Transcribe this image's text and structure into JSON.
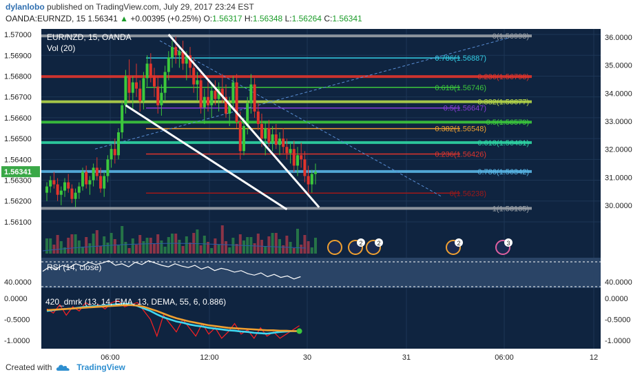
{
  "header": {
    "user": "dylanlobo",
    "published": "published on TradingView.com, July 29, 2017 23:24 EST",
    "symbol_line": "OANDA:EURNZD, 15",
    "last": "1.56341",
    "change_arrow": "▲",
    "change": "+0.00395 (+0.25%)",
    "o_label": "O:",
    "o_val": "1.56317",
    "h_label": "H:",
    "h_val": "1.56348",
    "l_label": "L:",
    "l_val": "1.56264",
    "c_label": "C:",
    "c_val": "1.56341"
  },
  "legend": {
    "title": "EUR/NZD, 15, OANDA",
    "vol": "Vol (20)"
  },
  "footer": {
    "created": "Created with",
    "brand": "TradingView",
    "logo_icon": "tradingview-cloud-icon"
  },
  "colors": {
    "background": "#0f2440",
    "grid": "#1d3656",
    "bull": "#3cc83c",
    "bear": "#e0342c",
    "price_badge": "#3aa847"
  },
  "chart_data": [
    {
      "type": "candlestick",
      "name": "main-price",
      "yaxis_left": {
        "ticks": [
          "1.57000",
          "1.56900",
          "1.56800",
          "1.56700",
          "1.56600",
          "1.56500",
          "1.56400",
          "1.56300",
          "1.56200",
          "1.56100"
        ],
        "range": [
          1.5608,
          1.5702
        ],
        "last_price_label": "1.56341"
      },
      "yaxis_right": {
        "ticks": [
          "36.0000",
          "35.0000",
          "34.0000",
          "33.0000",
          "32.0000",
          "31.0000",
          "30.0000"
        ]
      },
      "xaxis": {
        "ticks": [
          "06:00",
          "12:00",
          "30",
          "31",
          "06:00",
          "12"
        ]
      },
      "fib_levels_1": [
        {
          "label": "0(1.56993)",
          "value": 1.56993,
          "color": "#9aa0a6"
        },
        {
          "label": "0.236(1.56798)",
          "value": 1.56798,
          "color": "#e0342c"
        },
        {
          "label": "0.382(1.56677)",
          "value": 1.56677,
          "color": "#b6d84a"
        },
        {
          "label": "0.5(1.56579)",
          "value": 1.56579,
          "color": "#3cc83c"
        },
        {
          "label": "0.618(1.56481)",
          "value": 1.56481,
          "color": "#2fd6a4"
        },
        {
          "label": "0.786(1.56342)",
          "value": 1.56342,
          "color": "#59b6e6"
        },
        {
          "label": "1(1.56165)",
          "value": 1.56165,
          "color": "#9aa0a6"
        }
      ],
      "fib_levels_2": [
        {
          "label": "0.786(1.56887)",
          "value": 1.56887,
          "color": "#33cfe6"
        },
        {
          "label": "0.618(1.56746)",
          "value": 1.56746,
          "color": "#3cc83c"
        },
        {
          "label": "0.5(1.56647)",
          "value": 1.56647,
          "color": "#8a3cd8"
        },
        {
          "label": "0.382(1.56548)",
          "value": 1.56548,
          "color": "#f0a030"
        },
        {
          "label": "0.236(1.56426)",
          "value": 1.56426,
          "color": "#e0342c"
        },
        {
          "label": "0(1.56238)",
          "value": 1.56238,
          "color": "#a01818"
        }
      ],
      "event_badges": [
        "2",
        "2",
        "2",
        "3"
      ],
      "candles": [
        [
          1.5624,
          1.5629,
          1.562,
          1.5627
        ],
        [
          1.5627,
          1.5632,
          1.5624,
          1.563
        ],
        [
          1.563,
          1.5634,
          1.5626,
          1.5628
        ],
        [
          1.5628,
          1.5631,
          1.562,
          1.5623
        ],
        [
          1.5623,
          1.5627,
          1.5618,
          1.5625
        ],
        [
          1.5625,
          1.5631,
          1.5622,
          1.5629
        ],
        [
          1.5629,
          1.5633,
          1.5624,
          1.5626
        ],
        [
          1.5626,
          1.5628,
          1.5619,
          1.5621
        ],
        [
          1.5621,
          1.5626,
          1.5617,
          1.5624
        ],
        [
          1.5624,
          1.5629,
          1.5621,
          1.5627
        ],
        [
          1.5627,
          1.5636,
          1.5625,
          1.5634
        ],
        [
          1.5634,
          1.5637,
          1.5626,
          1.5628
        ],
        [
          1.5628,
          1.5632,
          1.5623,
          1.563
        ],
        [
          1.563,
          1.5638,
          1.5627,
          1.5636
        ],
        [
          1.5636,
          1.5641,
          1.563,
          1.5632
        ],
        [
          1.5632,
          1.5636,
          1.5624,
          1.5626
        ],
        [
          1.5626,
          1.5634,
          1.5622,
          1.5632
        ],
        [
          1.5632,
          1.5642,
          1.5629,
          1.564
        ],
        [
          1.564,
          1.5647,
          1.5636,
          1.5645
        ],
        [
          1.5645,
          1.565,
          1.5638,
          1.5642
        ],
        [
          1.5642,
          1.5655,
          1.564,
          1.5653
        ],
        [
          1.5653,
          1.5668,
          1.565,
          1.5666
        ],
        [
          1.5666,
          1.5683,
          1.5662,
          1.568
        ],
        [
          1.568,
          1.5688,
          1.5668,
          1.5672
        ],
        [
          1.5672,
          1.568,
          1.5664,
          1.5677
        ],
        [
          1.5677,
          1.5686,
          1.567,
          1.5674
        ],
        [
          1.5674,
          1.5678,
          1.5663,
          1.5668
        ],
        [
          1.5668,
          1.5682,
          1.5664,
          1.5679
        ],
        [
          1.5679,
          1.569,
          1.5675,
          1.5686
        ],
        [
          1.5686,
          1.5691,
          1.5677,
          1.568
        ],
        [
          1.568,
          1.5684,
          1.567,
          1.5675
        ],
        [
          1.5675,
          1.568,
          1.5662,
          1.5666
        ],
        [
          1.5666,
          1.5676,
          1.5661,
          1.5672
        ],
        [
          1.5672,
          1.5685,
          1.5668,
          1.5682
        ],
        [
          1.5682,
          1.5692,
          1.5678,
          1.5689
        ],
        [
          1.5689,
          1.5697,
          1.5684,
          1.5694
        ],
        [
          1.5694,
          1.5699,
          1.5686,
          1.569
        ],
        [
          1.569,
          1.5695,
          1.5684,
          1.5692
        ],
        [
          1.5692,
          1.5697,
          1.5683,
          1.5686
        ],
        [
          1.5686,
          1.5692,
          1.5678,
          1.569
        ],
        [
          1.569,
          1.5694,
          1.568,
          1.5684
        ],
        [
          1.5684,
          1.5689,
          1.5672,
          1.5676
        ],
        [
          1.5676,
          1.5682,
          1.5668,
          1.5678
        ],
        [
          1.5678,
          1.5683,
          1.5662,
          1.5665
        ],
        [
          1.5665,
          1.5674,
          1.5657,
          1.567
        ],
        [
          1.567,
          1.5678,
          1.5663,
          1.5666
        ],
        [
          1.5666,
          1.5676,
          1.566,
          1.5673
        ],
        [
          1.5673,
          1.5678,
          1.5666,
          1.5669
        ],
        [
          1.5669,
          1.5677,
          1.5663,
          1.5674
        ],
        [
          1.5674,
          1.5681,
          1.5667,
          1.567
        ],
        [
          1.567,
          1.5676,
          1.566,
          1.5662
        ],
        [
          1.5662,
          1.567,
          1.5656,
          1.5667
        ],
        [
          1.5667,
          1.568,
          1.5664,
          1.5677
        ],
        [
          1.5677,
          1.5681,
          1.5655,
          1.5658
        ],
        [
          1.5658,
          1.5663,
          1.564,
          1.5644
        ],
        [
          1.5644,
          1.566,
          1.5642,
          1.5656
        ],
        [
          1.5656,
          1.567,
          1.5652,
          1.5667
        ],
        [
          1.5667,
          1.5681,
          1.5662,
          1.5676
        ],
        [
          1.5676,
          1.5679,
          1.566,
          1.5663
        ],
        [
          1.5663,
          1.5667,
          1.5654,
          1.5657
        ],
        [
          1.5657,
          1.5662,
          1.5646,
          1.565
        ],
        [
          1.565,
          1.5658,
          1.5642,
          1.5655
        ],
        [
          1.5655,
          1.5659,
          1.5646,
          1.5648
        ],
        [
          1.5648,
          1.5656,
          1.5644,
          1.5652
        ],
        [
          1.5652,
          1.5657,
          1.5645,
          1.5647
        ],
        [
          1.5647,
          1.5653,
          1.5642,
          1.565
        ],
        [
          1.565,
          1.5655,
          1.5643,
          1.5646
        ],
        [
          1.5646,
          1.565,
          1.564,
          1.5643
        ],
        [
          1.5643,
          1.5648,
          1.5638,
          1.5645
        ],
        [
          1.5645,
          1.5649,
          1.5634,
          1.5637
        ],
        [
          1.5637,
          1.5646,
          1.5632,
          1.5642
        ],
        [
          1.5642,
          1.5648,
          1.5636,
          1.564
        ],
        [
          1.564,
          1.5644,
          1.5629,
          1.5632
        ],
        [
          1.5632,
          1.5637,
          1.5624,
          1.5628
        ],
        [
          1.5628,
          1.5635,
          1.5624,
          1.5633
        ],
        [
          1.5633,
          1.5638,
          1.5628,
          1.5634
        ]
      ],
      "trendlines": [
        {
          "name": "upper",
          "from": [
            34,
            1.57
          ],
          "to": [
            76,
            1.5617
          ],
          "color": "#ffffff"
        },
        {
          "name": "lower",
          "from": [
            22,
            1.5666
          ],
          "to": [
            67,
            1.5616
          ],
          "color": "#ffffff"
        }
      ]
    },
    {
      "type": "line",
      "name": "RSI (14, close)",
      "label": "RSI (14, close)",
      "y_ticks": [
        "40.0000"
      ],
      "values": [
        52,
        58,
        55,
        60,
        57,
        62,
        59,
        64,
        61,
        63,
        66,
        60,
        62,
        58,
        64,
        61,
        66,
        63,
        60,
        58,
        62,
        59,
        57,
        60,
        55,
        58,
        53,
        56,
        54,
        51,
        53,
        49,
        47,
        50,
        45,
        48,
        44,
        46,
        42,
        45
      ]
    },
    {
      "type": "line",
      "name": "dmrk",
      "label": "420_dmrk (13, 14, EMA, 13, DEMA, 55, 6, 0.886)",
      "y_ticks": [
        "0.0000",
        "-0.5000",
        "-1.0000"
      ],
      "ylim": [
        -1.1,
        0.05
      ],
      "series": [
        {
          "name": "fast",
          "color": "#ff2020",
          "values": [
            -0.25,
            -0.35,
            -0.15,
            -0.4,
            -0.2,
            -0.3,
            -0.1,
            -0.2,
            -0.15,
            -0.25,
            -0.1,
            -0.05,
            -0.2,
            -0.15,
            -0.1,
            -0.3,
            -0.5,
            -0.9,
            -0.4,
            -0.6,
            -0.8,
            -0.5,
            -0.7,
            -0.9,
            -0.6,
            -0.85,
            -0.7,
            -0.95,
            -0.8,
            -0.6,
            -0.85,
            -0.75,
            -0.95,
            -0.7,
            -0.9,
            -0.8,
            -0.95,
            -0.85,
            -0.75,
            -0.65
          ]
        },
        {
          "name": "signal",
          "color": "#40d8f0",
          "values": [
            -0.3,
            -0.28,
            -0.26,
            -0.25,
            -0.24,
            -0.22,
            -0.2,
            -0.19,
            -0.18,
            -0.17,
            -0.15,
            -0.14,
            -0.13,
            -0.14,
            -0.18,
            -0.24,
            -0.3,
            -0.38,
            -0.45,
            -0.5,
            -0.55,
            -0.58,
            -0.62,
            -0.65,
            -0.67,
            -0.7,
            -0.72,
            -0.74,
            -0.76,
            -0.77,
            -0.79,
            -0.8,
            -0.82,
            -0.83,
            -0.84,
            -0.82,
            -0.8,
            -0.79,
            -0.78,
            -0.78
          ]
        },
        {
          "name": "slow",
          "color": "#f0a030",
          "values": [
            -0.28,
            -0.27,
            -0.26,
            -0.25,
            -0.24,
            -0.23,
            -0.22,
            -0.21,
            -0.2,
            -0.19,
            -0.18,
            -0.17,
            -0.16,
            -0.16,
            -0.17,
            -0.2,
            -0.25,
            -0.3,
            -0.36,
            -0.42,
            -0.47,
            -0.51,
            -0.55,
            -0.58,
            -0.61,
            -0.64,
            -0.66,
            -0.68,
            -0.7,
            -0.71,
            -0.72,
            -0.73,
            -0.74,
            -0.75,
            -0.76,
            -0.76,
            -0.77,
            -0.77,
            -0.78,
            -0.78
          ]
        }
      ]
    }
  ]
}
